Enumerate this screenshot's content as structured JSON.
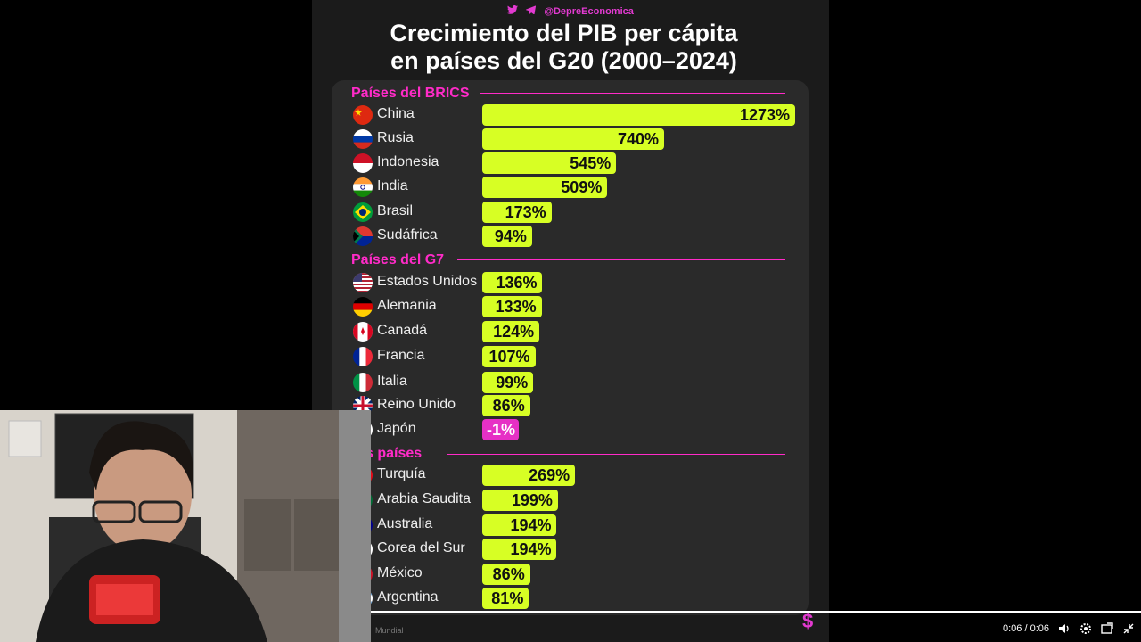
{
  "handle": "@DepreEconomica",
  "title_line1": "Crecimiento del PIB per cápita",
  "title_line2": "en países del G20 (2000–2024)",
  "sections": {
    "brics": "Países del BRICS",
    "g7": "Países del G7",
    "others": "ros países"
  },
  "rows": [
    {
      "country": "China",
      "label": "1273%"
    },
    {
      "country": "Rusia",
      "label": "740%"
    },
    {
      "country": "Indonesia",
      "label": "545%"
    },
    {
      "country": "India",
      "label": "509%"
    },
    {
      "country": "Brasil",
      "label": "173%"
    },
    {
      "country": "Sudáfrica",
      "label": "94%"
    },
    {
      "country": "Estados Unidos",
      "label": "136%"
    },
    {
      "country": "Alemania",
      "label": "133%"
    },
    {
      "country": "Canadá",
      "label": "124%"
    },
    {
      "country": "Francia",
      "label": "107%"
    },
    {
      "country": "Italia",
      "label": "99%"
    },
    {
      "country": "Reino Unido",
      "label": "86%"
    },
    {
      "country": "Japón",
      "label": "-1%"
    },
    {
      "country": "Turquía",
      "label": "269%"
    },
    {
      "country": "Arabia Saudita",
      "label": "199%"
    },
    {
      "country": "Australia",
      "label": "194%"
    },
    {
      "country": "Corea del Sur",
      "label": "194%"
    },
    {
      "country": "México",
      "label": "86%"
    },
    {
      "country": "Argentina",
      "label": "81%"
    }
  ],
  "chart_data": {
    "type": "bar",
    "title": "Crecimiento del PIB per cápita en países del G20 (2000–2024)",
    "categories": [
      "China",
      "Rusia",
      "Indonesia",
      "India",
      "Brasil",
      "Sudáfrica",
      "Estados Unidos",
      "Alemania",
      "Canadá",
      "Francia",
      "Italia",
      "Reino Unido",
      "Japón",
      "Turquía",
      "Arabia Saudita",
      "Australia",
      "Corea del Sur",
      "México",
      "Argentina"
    ],
    "values": [
      1273,
      740,
      545,
      509,
      173,
      94,
      136,
      133,
      124,
      107,
      99,
      86,
      -1,
      269,
      199,
      194,
      194,
      86,
      81
    ],
    "groups": [
      "Países del BRICS",
      "Países del G7",
      "ros países"
    ]
  },
  "player": {
    "time": "0:06 / 0:06",
    "progress": 1.0,
    "watermark": "$",
    "credit": "Mundial"
  },
  "colors": {
    "accent": "#ff2bc8",
    "bar": "#d7ff24",
    "bar_negative": "#e630c5"
  }
}
